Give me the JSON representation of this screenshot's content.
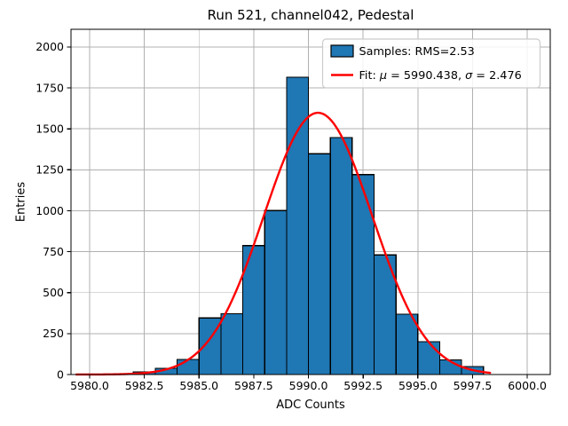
{
  "figure": {
    "title": "Run 521, channel042, Pedestal",
    "background": "#ffffff"
  },
  "chart_data": {
    "type": "bar",
    "subtype": "histogram",
    "title": "Run 521, channel042, Pedestal",
    "xlabel": "ADC Counts",
    "ylabel": "Entries",
    "bin_edges": [
      5982,
      5983,
      5984,
      5985,
      5986,
      5987,
      5988,
      5989,
      5990,
      5991,
      5992,
      5993,
      5994,
      5995,
      5996,
      5997,
      5998
    ],
    "counts": [
      16,
      38,
      92,
      345,
      372,
      787,
      1001,
      1815,
      1348,
      1447,
      1221,
      730,
      369,
      200,
      90,
      48
    ],
    "xlim": [
      5979.15,
      6001.05
    ],
    "ylim": [
      0,
      2108
    ],
    "xticks": [
      5980.0,
      5982.5,
      5985.0,
      5987.5,
      5990.0,
      5992.5,
      5995.0,
      5997.5,
      6000.0
    ],
    "xtick_labels": [
      "5980.0",
      "5982.5",
      "5985.0",
      "5987.5",
      "5990.0",
      "5992.5",
      "5995.0",
      "5997.5",
      "6000.0"
    ],
    "yticks": [
      0,
      250,
      500,
      750,
      1000,
      1250,
      1500,
      1750,
      2000
    ],
    "ytick_labels": [
      "0",
      "250",
      "500",
      "750",
      "1000",
      "1250",
      "1500",
      "1750",
      "2000"
    ],
    "grid": true,
    "legend_position": "upper right",
    "legend": [
      {
        "swatch": "patch",
        "color": "#1f77b4",
        "edge": "#000000",
        "label": "Samples: RMS=2.53"
      },
      {
        "swatch": "line",
        "color": "#ff0000",
        "label": "Fit: μ = 5990.438, σ = 2.476"
      }
    ],
    "fit": {
      "mu": 5990.438,
      "sigma": 2.476,
      "x_start": 5979.4,
      "x_end": 5998.35,
      "color": "#ff0000"
    },
    "colors": {
      "bar_fill": "#1f77b4",
      "bar_edge": "#000000",
      "grid": "#b0b0b0",
      "spine": "#000000",
      "fit_line": "#ff0000"
    }
  }
}
